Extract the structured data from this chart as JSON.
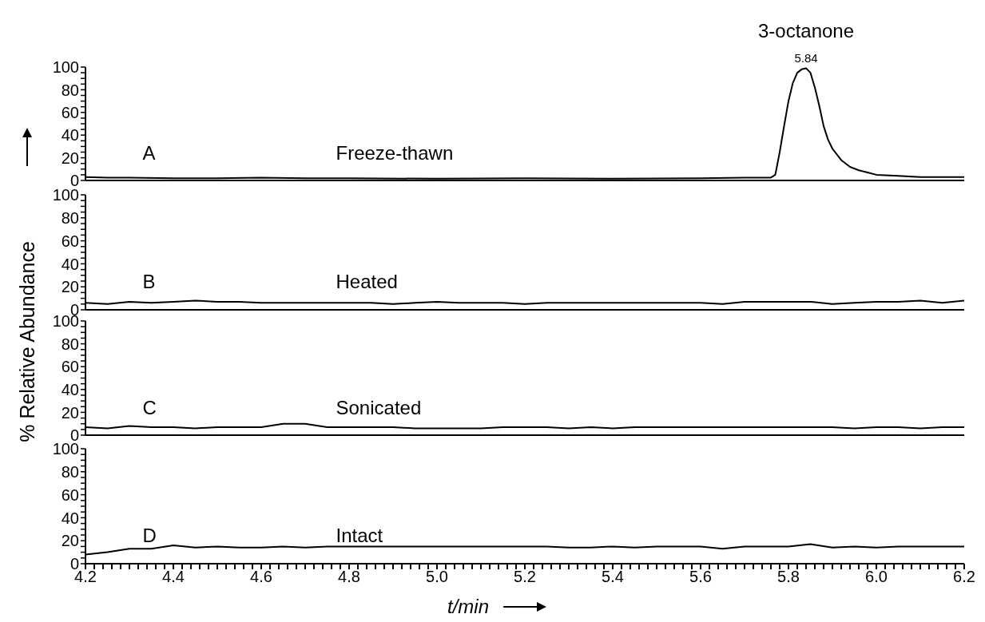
{
  "chart_data": [
    {
      "type": "line",
      "annotations": [
        "A",
        "Freeze-thawn",
        {
          "text": "5.84",
          "x": 5.84,
          "y": 99
        },
        {
          "text": "3-octanone",
          "x": 5.84,
          "y": 99
        }
      ],
      "x": [
        4.2,
        4.25,
        4.3,
        4.4,
        4.5,
        4.6,
        4.7,
        4.8,
        5.0,
        5.2,
        5.4,
        5.6,
        5.7,
        5.76,
        5.77,
        5.78,
        5.79,
        5.8,
        5.81,
        5.82,
        5.83,
        5.84,
        5.85,
        5.86,
        5.87,
        5.88,
        5.89,
        5.9,
        5.92,
        5.94,
        5.96,
        5.98,
        6.0,
        6.05,
        6.1,
        6.15,
        6.2
      ],
      "series": [
        {
          "color": "#000000",
          "values": [
            3,
            2.5,
            2.5,
            2,
            2,
            2.5,
            2,
            2,
            1.5,
            2,
            1.5,
            2,
            2.5,
            2.5,
            5,
            25,
            48,
            70,
            86,
            95,
            98,
            99,
            95,
            82,
            66,
            48,
            36,
            28,
            18,
            12,
            9,
            7,
            5,
            4,
            3,
            3,
            3
          ]
        }
      ],
      "xlim": [
        4.2,
        6.2
      ],
      "ylim": [
        0,
        100
      ],
      "yticks": [
        0,
        {
          "value": 5,
          "label": null
        },
        {
          "value": 10,
          "label": null
        },
        {
          "value": 15,
          "label": null
        },
        20,
        {
          "value": 25,
          "label": null
        },
        {
          "value": 30,
          "label": null
        },
        {
          "value": 35,
          "label": null
        },
        40,
        {
          "value": 45,
          "label": null
        },
        {
          "value": 50,
          "label": null
        },
        {
          "value": 55,
          "label": null
        },
        60,
        {
          "value": 65,
          "label": null
        },
        {
          "value": 70,
          "label": null
        },
        {
          "value": 75,
          "label": null
        },
        80,
        {
          "value": 85,
          "label": null
        },
        {
          "value": 90,
          "label": null
        },
        {
          "value": 95,
          "label": null
        },
        100
      ],
      "tick_labels": "y",
      "marker": "none",
      "line_style": "solid"
    },
    {
      "type": "line",
      "ylabel": "% Relative Abundance",
      "annotations": [
        "B",
        "Heated"
      ],
      "x": [
        4.2,
        4.25,
        4.3,
        4.35,
        4.4,
        4.45,
        4.5,
        4.55,
        4.6,
        4.65,
        4.7,
        4.75,
        4.8,
        4.85,
        4.9,
        4.95,
        5.0,
        5.05,
        5.1,
        5.15,
        5.2,
        5.25,
        5.3,
        5.35,
        5.4,
        5.45,
        5.5,
        5.55,
        5.6,
        5.65,
        5.7,
        5.75,
        5.8,
        5.85,
        5.9,
        5.95,
        6.0,
        6.05,
        6.1,
        6.15,
        6.2
      ],
      "series": [
        {
          "color": "#000000",
          "values": [
            6,
            5,
            7,
            6,
            7,
            8,
            7,
            7,
            6,
            6,
            6,
            6,
            6,
            6,
            5,
            6,
            7,
            6,
            6,
            6,
            5,
            6,
            6,
            6,
            6,
            6,
            6,
            6,
            6,
            5,
            7,
            7,
            7,
            7,
            5,
            6,
            7,
            7,
            8,
            6,
            8
          ]
        }
      ],
      "xlim": [
        4.2,
        6.2
      ],
      "ylim": [
        0,
        100
      ],
      "yticks": [
        0,
        {
          "value": 5,
          "label": null
        },
        {
          "value": 10,
          "label": null
        },
        {
          "value": 15,
          "label": null
        },
        20,
        {
          "value": 25,
          "label": null
        },
        {
          "value": 30,
          "label": null
        },
        {
          "value": 35,
          "label": null
        },
        40,
        {
          "value": 45,
          "label": null
        },
        {
          "value": 50,
          "label": null
        },
        {
          "value": 55,
          "label": null
        },
        60,
        {
          "value": 65,
          "label": null
        },
        {
          "value": 70,
          "label": null
        },
        {
          "value": 75,
          "label": null
        },
        80,
        {
          "value": 85,
          "label": null
        },
        {
          "value": 90,
          "label": null
        },
        {
          "value": 95,
          "label": null
        },
        100
      ],
      "tick_labels": "y",
      "marker": "none",
      "line_style": "solid"
    },
    {
      "type": "line",
      "annotations": [
        "C",
        "Sonicated"
      ],
      "x": [
        4.2,
        4.25,
        4.3,
        4.35,
        4.4,
        4.45,
        4.5,
        4.55,
        4.6,
        4.65,
        4.7,
        4.75,
        4.8,
        4.85,
        4.9,
        4.95,
        5.0,
        5.05,
        5.1,
        5.15,
        5.2,
        5.25,
        5.3,
        5.35,
        5.4,
        5.45,
        5.5,
        5.55,
        5.6,
        5.65,
        5.7,
        5.75,
        5.8,
        5.85,
        5.9,
        5.95,
        6.0,
        6.05,
        6.1,
        6.15,
        6.2
      ],
      "series": [
        {
          "color": "#000000",
          "values": [
            7,
            6,
            8,
            7,
            7,
            6,
            7,
            7,
            7,
            10,
            10,
            7,
            7,
            7,
            7,
            6,
            6,
            6,
            6,
            7,
            7,
            7,
            6,
            7,
            6,
            7,
            7,
            7,
            7,
            7,
            7,
            7,
            7,
            7,
            7,
            6,
            7,
            7,
            6,
            7,
            7
          ]
        }
      ],
      "xlim": [
        4.2,
        6.2
      ],
      "ylim": [
        0,
        100
      ],
      "yticks": [
        0,
        {
          "value": 5,
          "label": null
        },
        {
          "value": 10,
          "label": null
        },
        {
          "value": 15,
          "label": null
        },
        20,
        {
          "value": 25,
          "label": null
        },
        {
          "value": 30,
          "label": null
        },
        {
          "value": 35,
          "label": null
        },
        40,
        {
          "value": 45,
          "label": null
        },
        {
          "value": 50,
          "label": null
        },
        {
          "value": 55,
          "label": null
        },
        60,
        {
          "value": 65,
          "label": null
        },
        {
          "value": 70,
          "label": null
        },
        {
          "value": 75,
          "label": null
        },
        80,
        {
          "value": 85,
          "label": null
        },
        {
          "value": 90,
          "label": null
        },
        {
          "value": 95,
          "label": null
        },
        100
      ],
      "tick_labels": "y",
      "marker": "none",
      "line_style": "solid"
    },
    {
      "type": "line",
      "xlabel": "t/min",
      "annotations": [
        "D",
        "Intact"
      ],
      "x": [
        4.2,
        4.25,
        4.3,
        4.35,
        4.4,
        4.45,
        4.5,
        4.55,
        4.6,
        4.65,
        4.7,
        4.75,
        4.8,
        4.85,
        4.9,
        4.95,
        5.0,
        5.05,
        5.1,
        5.15,
        5.2,
        5.25,
        5.3,
        5.35,
        5.4,
        5.45,
        5.5,
        5.55,
        5.6,
        5.65,
        5.7,
        5.75,
        5.8,
        5.85,
        5.9,
        5.95,
        6.0,
        6.05,
        6.1,
        6.15,
        6.2
      ],
      "series": [
        {
          "color": "#000000",
          "values": [
            8,
            10,
            13,
            13,
            16,
            14,
            15,
            14,
            14,
            15,
            14,
            15,
            15,
            15,
            15,
            15,
            15,
            15,
            15,
            15,
            15,
            15,
            14,
            14,
            15,
            14,
            15,
            15,
            15,
            13,
            15,
            15,
            15,
            17,
            14,
            15,
            14,
            15,
            15,
            15,
            15
          ]
        }
      ],
      "xlim": [
        4.2,
        6.2
      ],
      "xticks": [
        4.2,
        {
          "value": 4.22,
          "label": null
        },
        {
          "value": 4.24,
          "label": null
        },
        {
          "value": 4.26,
          "label": null
        },
        {
          "value": 4.28,
          "label": null
        },
        {
          "value": 4.3,
          "label": null
        },
        {
          "value": 4.32,
          "label": null
        },
        {
          "value": 4.34,
          "label": null
        },
        {
          "value": 4.36,
          "label": null
        },
        {
          "value": 4.38,
          "label": null
        },
        4.4,
        {
          "value": 4.42,
          "label": null
        },
        {
          "value": 4.44,
          "label": null
        },
        {
          "value": 4.46,
          "label": null
        },
        {
          "value": 4.48,
          "label": null
        },
        {
          "value": 4.5,
          "label": null
        },
        {
          "value": 4.52,
          "label": null
        },
        {
          "value": 4.54,
          "label": null
        },
        {
          "value": 4.56,
          "label": null
        },
        {
          "value": 4.58,
          "label": null
        },
        4.6,
        {
          "value": 4.62,
          "label": null
        },
        {
          "value": 4.64,
          "label": null
        },
        {
          "value": 4.66,
          "label": null
        },
        {
          "value": 4.68,
          "label": null
        },
        {
          "value": 4.7,
          "label": null
        },
        {
          "value": 4.72,
          "label": null
        },
        {
          "value": 4.74,
          "label": null
        },
        {
          "value": 4.76,
          "label": null
        },
        {
          "value": 4.78,
          "label": null
        },
        4.8,
        {
          "value": 4.82,
          "label": null
        },
        {
          "value": 4.84,
          "label": null
        },
        {
          "value": 4.86,
          "label": null
        },
        {
          "value": 4.88,
          "label": null
        },
        {
          "value": 4.9,
          "label": null
        },
        {
          "value": 4.92,
          "label": null
        },
        {
          "value": 4.94,
          "label": null
        },
        {
          "value": 4.96,
          "label": null
        },
        {
          "value": 4.98,
          "label": null
        },
        {
          "value": 5,
          "label": "5.0"
        },
        {
          "value": 5.02,
          "label": null
        },
        {
          "value": 5.04,
          "label": null
        },
        {
          "value": 5.06,
          "label": null
        },
        {
          "value": 5.08,
          "label": null
        },
        {
          "value": 5.1,
          "label": null
        },
        {
          "value": 5.12,
          "label": null
        },
        {
          "value": 5.14,
          "label": null
        },
        {
          "value": 5.16,
          "label": null
        },
        {
          "value": 5.18,
          "label": null
        },
        5.2,
        {
          "value": 5.22,
          "label": null
        },
        {
          "value": 5.24,
          "label": null
        },
        {
          "value": 5.26,
          "label": null
        },
        {
          "value": 5.28,
          "label": null
        },
        {
          "value": 5.3,
          "label": null
        },
        {
          "value": 5.32,
          "label": null
        },
        {
          "value": 5.34,
          "label": null
        },
        {
          "value": 5.36,
          "label": null
        },
        {
          "value": 5.38,
          "label": null
        },
        5.4,
        {
          "value": 5.42,
          "label": null
        },
        {
          "value": 5.44,
          "label": null
        },
        {
          "value": 5.46,
          "label": null
        },
        {
          "value": 5.48,
          "label": null
        },
        {
          "value": 5.5,
          "label": null
        },
        {
          "value": 5.52,
          "label": null
        },
        {
          "value": 5.54,
          "label": null
        },
        {
          "value": 5.56,
          "label": null
        },
        {
          "value": 5.58,
          "label": null
        },
        5.6,
        {
          "value": 5.62,
          "label": null
        },
        {
          "value": 5.64,
          "label": null
        },
        {
          "value": 5.66,
          "label": null
        },
        {
          "value": 5.68,
          "label": null
        },
        {
          "value": 5.7,
          "label": null
        },
        {
          "value": 5.72,
          "label": null
        },
        {
          "value": 5.74,
          "label": null
        },
        {
          "value": 5.76,
          "label": null
        },
        {
          "value": 5.78,
          "label": null
        },
        5.8,
        {
          "value": 5.82,
          "label": null
        },
        {
          "value": 5.84,
          "label": null
        },
        {
          "value": 5.86,
          "label": null
        },
        {
          "value": 5.88,
          "label": null
        },
        {
          "value": 5.9,
          "label": null
        },
        {
          "value": 5.92,
          "label": null
        },
        {
          "value": 5.94,
          "label": null
        },
        {
          "value": 5.96,
          "label": null
        },
        {
          "value": 5.98,
          "label": null
        },
        {
          "value": 6,
          "label": "6.0"
        },
        {
          "value": 6.02,
          "label": null
        },
        {
          "value": 6.04,
          "label": null
        },
        {
          "value": 6.06,
          "label": null
        },
        {
          "value": 6.08,
          "label": null
        },
        {
          "value": 6.1,
          "label": null
        },
        {
          "value": 6.12,
          "label": null
        },
        {
          "value": 6.14,
          "label": null
        },
        {
          "value": 6.16,
          "label": null
        },
        {
          "value": 6.18,
          "label": null
        },
        6.2
      ],
      "ylim": [
        0,
        100
      ],
      "yticks": [
        0,
        {
          "value": 5,
          "label": null
        },
        {
          "value": 10,
          "label": null
        },
        {
          "value": 15,
          "label": null
        },
        20,
        {
          "value": 25,
          "label": null
        },
        {
          "value": 30,
          "label": null
        },
        {
          "value": 35,
          "label": null
        },
        40,
        {
          "value": 45,
          "label": null
        },
        {
          "value": 50,
          "label": null
        },
        {
          "value": 55,
          "label": null
        },
        60,
        {
          "value": 65,
          "label": null
        },
        {
          "value": 70,
          "label": null
        },
        {
          "value": 75,
          "label": null
        },
        80,
        {
          "value": 85,
          "label": null
        },
        {
          "value": 90,
          "label": null
        },
        {
          "value": 95,
          "label": null
        },
        100
      ],
      "marker": "none",
      "line_style": "solid"
    }
  ]
}
